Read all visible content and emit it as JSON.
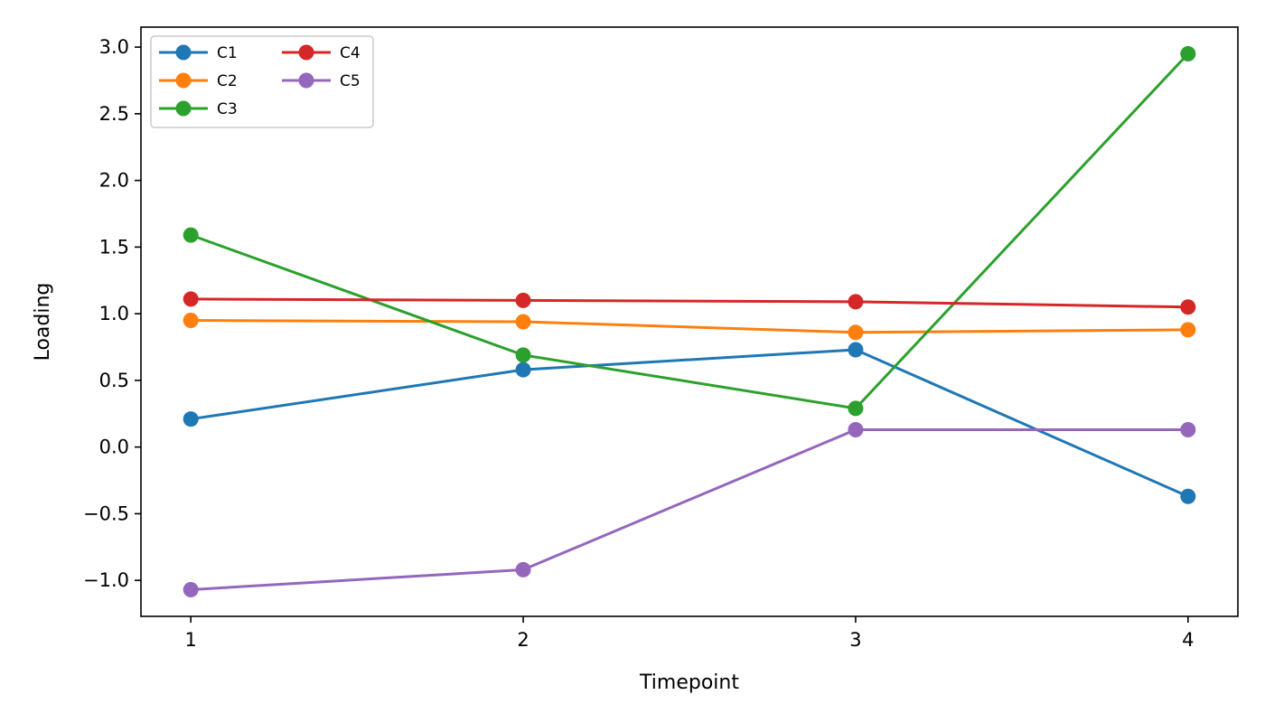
{
  "chart_data": {
    "type": "line",
    "title": "",
    "xlabel": "Timepoint",
    "ylabel": "Loading",
    "x": [
      1,
      2,
      3,
      4
    ],
    "xlim": [
      0.85,
      4.15
    ],
    "ylim": [
      -1.27,
      3.15
    ],
    "xticks": [
      1,
      2,
      3,
      4
    ],
    "xtick_labels": [
      "1",
      "2",
      "3",
      "4"
    ],
    "yticks": [
      -1.0,
      -0.5,
      0.0,
      0.5,
      1.0,
      1.5,
      2.0,
      2.5,
      3.0
    ],
    "ytick_labels": [
      "−1.0",
      "−0.5",
      "0.0",
      "0.5",
      "1.0",
      "1.5",
      "2.0",
      "2.5",
      "3.0"
    ],
    "grid": false,
    "legend": {
      "placement": "top-left",
      "columns": 2
    },
    "series": [
      {
        "name": "C1",
        "color": "#1f77b4",
        "values": [
          0.21,
          0.58,
          0.73,
          -0.37
        ]
      },
      {
        "name": "C2",
        "color": "#ff7f0e",
        "values": [
          0.95,
          0.94,
          0.86,
          0.88
        ]
      },
      {
        "name": "C3",
        "color": "#2ca02c",
        "values": [
          1.59,
          0.69,
          0.29,
          2.95
        ]
      },
      {
        "name": "C4",
        "color": "#d62728",
        "values": [
          1.11,
          1.1,
          1.09,
          1.05
        ]
      },
      {
        "name": "C5",
        "color": "#9467bd",
        "values": [
          -1.07,
          -0.92,
          0.13,
          0.13
        ]
      }
    ]
  }
}
